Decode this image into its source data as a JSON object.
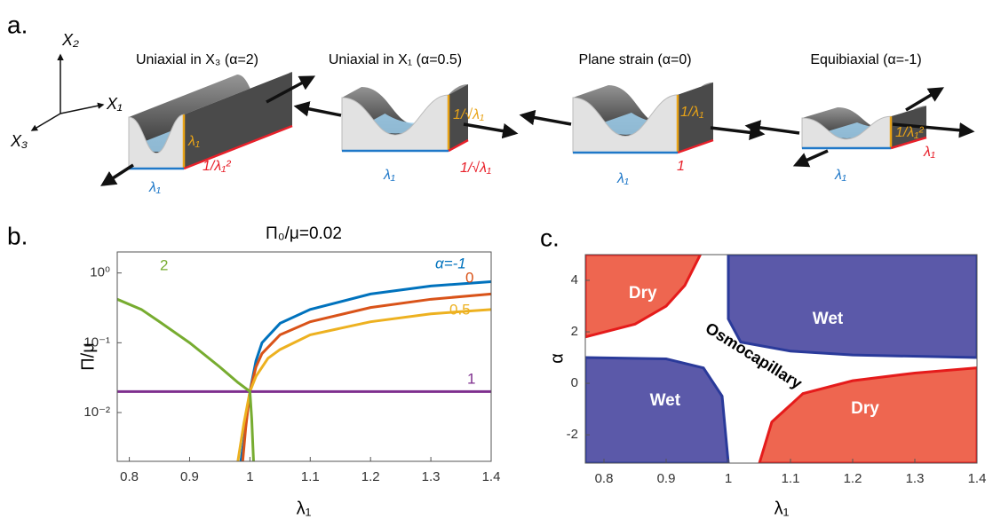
{
  "panel_labels": [
    "a.",
    "b.",
    "c."
  ],
  "panel_a": {
    "axes": [
      "X₂",
      "X₁",
      "X₃"
    ],
    "blocks": [
      {
        "title": "Uniaxial in X₃ (α=2)",
        "labels": [
          "λ₁",
          "1/λ₁²",
          "λ₁"
        ]
      },
      {
        "title": "Uniaxial in X₁ (α=0.5)",
        "labels": [
          "1/√λ₁",
          "1/√λ₁",
          "λ₁"
        ]
      },
      {
        "title": "Plane strain (α=0)",
        "labels": [
          "1/λ₁",
          "1",
          "λ₁"
        ]
      },
      {
        "title": "Equibiaxial (α=-1)",
        "labels": [
          "1/λ₁²",
          "λ₁",
          "λ₁"
        ]
      }
    ]
  },
  "chart_data": [
    {
      "type": "line",
      "title": "Π₀/μ=0.02",
      "x_label": "λ₁",
      "y_label": "Π/μ",
      "log_y": true,
      "xlim": [
        0.78,
        1.4
      ],
      "xticks": [
        0.8,
        0.9,
        1,
        1.1,
        1.2,
        1.3,
        1.4
      ],
      "ylim": [
        0.002,
        2
      ],
      "yticks": [
        {
          "value": 1,
          "label": "10⁰"
        },
        {
          "value": 0.1,
          "label": "10⁻¹"
        },
        {
          "value": 0.01,
          "label": "10⁻²"
        }
      ],
      "series": [
        {
          "name": "α=-1",
          "color": "#0072bd",
          "x": [
            0.985,
            0.99,
            0.995,
            1.0,
            1.01,
            1.02,
            1.05,
            1.1,
            1.2,
            1.3,
            1.4
          ],
          "values": [
            0.002,
            0.004,
            0.009,
            0.02,
            0.055,
            0.1,
            0.19,
            0.3,
            0.5,
            0.65,
            0.75
          ]
        },
        {
          "name": "0",
          "color": "#d95319",
          "x": [
            0.988,
            0.993,
            1.0,
            1.01,
            1.02,
            1.05,
            1.1,
            1.2,
            1.3,
            1.4
          ],
          "values": [
            0.002,
            0.006,
            0.02,
            0.045,
            0.07,
            0.13,
            0.2,
            0.32,
            0.42,
            0.5
          ]
        },
        {
          "name": "0.5",
          "color": "#edb120",
          "x": [
            0.98,
            0.99,
            1.0,
            1.01,
            1.03,
            1.05,
            1.1,
            1.2,
            1.3,
            1.4
          ],
          "values": [
            0.002,
            0.007,
            0.02,
            0.033,
            0.06,
            0.08,
            0.13,
            0.2,
            0.26,
            0.3
          ]
        },
        {
          "name": "1",
          "color": "#7e2f8e",
          "x": [
            0.78,
            1.4
          ],
          "values": [
            0.02,
            0.02
          ]
        },
        {
          "name": "2",
          "color": "#77ac30",
          "x": [
            0.78,
            0.82,
            0.85,
            0.9,
            0.95,
            0.98,
            1.0,
            1.003,
            1.006
          ],
          "values": [
            0.42,
            0.3,
            0.2,
            0.1,
            0.045,
            0.027,
            0.02,
            0.008,
            0.002
          ]
        }
      ]
    },
    {
      "type": "area",
      "x_label": "λ₁",
      "y_label": "α",
      "annotation": "Osmocapillary",
      "xlim": [
        0.77,
        1.4
      ],
      "xticks": [
        0.8,
        0.9,
        1,
        1.1,
        1.2,
        1.3,
        1.4
      ],
      "ylim": [
        -3.1,
        5
      ],
      "yticks": [
        -2,
        0,
        2,
        4
      ],
      "series": [
        {
          "name": "Dry",
          "color": "#ee6650",
          "x": [
            0.77,
            0.85,
            0.9,
            0.93,
            0.955,
            0.77
          ],
          "values": [
            1.8,
            2.3,
            3.0,
            3.8,
            5,
            5
          ]
        },
        {
          "name": "Wet",
          "color": "#5b59a9",
          "x": [
            1.0,
            1.0,
            1.02,
            1.1,
            1.2,
            1.4,
            1.4
          ],
          "values": [
            5,
            2.5,
            1.6,
            1.25,
            1.1,
            1.0,
            5
          ]
        },
        {
          "name": "Wet",
          "color": "#5b59a9",
          "x": [
            0.77,
            0.9,
            0.96,
            0.99,
            1.0,
            0.77
          ],
          "values": [
            1.0,
            0.95,
            0.6,
            -0.5,
            -3.1,
            -3.1
          ]
        },
        {
          "name": "Dry",
          "color": "#ee6650",
          "x": [
            1.05,
            1.07,
            1.12,
            1.2,
            1.3,
            1.4,
            1.4
          ],
          "values": [
            -3.1,
            -1.5,
            -0.4,
            0.1,
            0.4,
            0.6,
            -3.1
          ]
        }
      ]
    }
  ]
}
